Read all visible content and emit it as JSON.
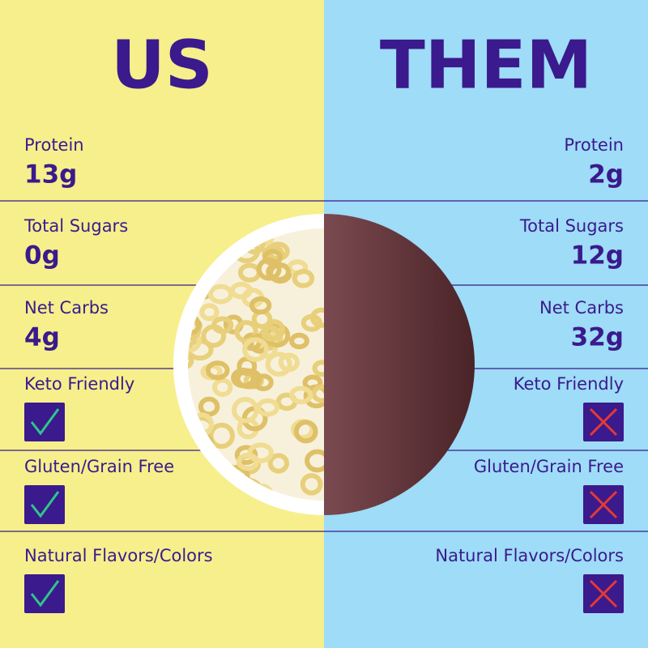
{
  "header": {
    "us": "US",
    "them": "THEM"
  },
  "rows": [
    {
      "label": "Protein",
      "us": "13g",
      "them": "2g"
    },
    {
      "label": "Total Sugars",
      "us": "0g",
      "them": "12g"
    },
    {
      "label": "Net Carbs",
      "us": "4g",
      "them": "32g"
    },
    {
      "label": "Keto Friendly",
      "us": true,
      "them": false
    },
    {
      "label": "Gluten/Grain Free",
      "us": true,
      "them": false
    },
    {
      "label": "Natural Flavors/Colors",
      "us": true,
      "them": false
    }
  ]
}
